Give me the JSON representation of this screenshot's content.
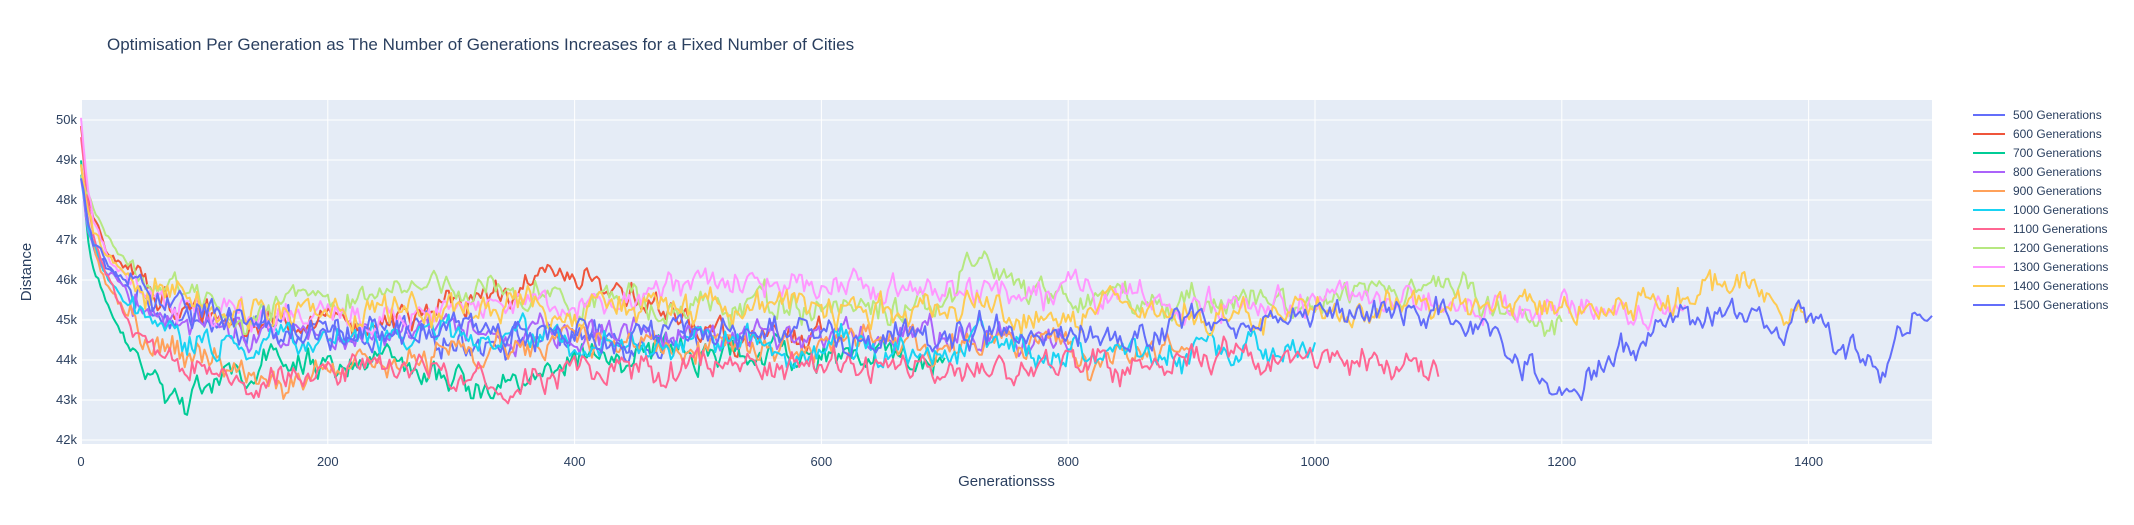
{
  "chart_data": {
    "type": "line",
    "title": "Optimisation Per Generation as The Number of Generations Increases for a Fixed Number of Cities",
    "xlabel": "Generationsss",
    "ylabel": "Distance",
    "xlim": [
      0,
      1500
    ],
    "ylim": [
      41900,
      50500
    ],
    "x_ticks": [
      0,
      200,
      400,
      600,
      800,
      1000,
      1200,
      1400
    ],
    "x_tick_labels": [
      "0",
      "200",
      "400",
      "600",
      "800",
      "1000",
      "1200",
      "1400"
    ],
    "y_ticks": [
      42000,
      43000,
      44000,
      45000,
      46000,
      47000,
      48000,
      49000,
      50000
    ],
    "y_tick_labels": [
      "42k",
      "43k",
      "44k",
      "45k",
      "46k",
      "47k",
      "48k",
      "49k",
      "50k"
    ],
    "grid": true,
    "legend_position": "right",
    "background": "#e5ecf6",
    "series": [
      {
        "name": "500 Generations",
        "color": "#636efa",
        "x": [
          0,
          5,
          10,
          20,
          30,
          40,
          60,
          80,
          100,
          130,
          160,
          200,
          240,
          280,
          320,
          360,
          400,
          440,
          480,
          500
        ],
        "y": [
          48600,
          47500,
          46800,
          46300,
          46000,
          45800,
          45400,
          45100,
          44900,
          44800,
          44700,
          44600,
          44700,
          44600,
          44500,
          44600,
          44600,
          44500,
          44600,
          44700
        ]
      },
      {
        "name": "600 Generations",
        "color": "#ef553b",
        "x": [
          0,
          5,
          10,
          20,
          30,
          40,
          60,
          80,
          100,
          150,
          200,
          250,
          300,
          350,
          380,
          400,
          420,
          450,
          480,
          520,
          560,
          600
        ],
        "y": [
          49800,
          48200,
          47400,
          46800,
          46500,
          46200,
          45700,
          45300,
          45100,
          45000,
          44900,
          45000,
          45200,
          45700,
          46100,
          46300,
          46000,
          45500,
          45000,
          44600,
          44500,
          44600
        ]
      },
      {
        "name": "700 Generations",
        "color": "#00cc96",
        "x": [
          0,
          5,
          10,
          20,
          30,
          40,
          50,
          60,
          80,
          100,
          120,
          150,
          200,
          250,
          300,
          320,
          350,
          400,
          450,
          500,
          550,
          600,
          650,
          700
        ],
        "y": [
          48900,
          47300,
          46300,
          45400,
          44800,
          44300,
          43900,
          43400,
          43200,
          43300,
          43500,
          43800,
          44000,
          43800,
          43500,
          43200,
          43600,
          43900,
          44100,
          44200,
          44000,
          44100,
          44100,
          44000
        ]
      },
      {
        "name": "800 Generations",
        "color": "#ab63fa",
        "x": [
          0,
          5,
          10,
          20,
          30,
          40,
          60,
          80,
          100,
          150,
          200,
          300,
          400,
          500,
          600,
          700,
          800
        ],
        "y": [
          48500,
          47400,
          46800,
          46300,
          46000,
          45700,
          45300,
          45100,
          44900,
          44800,
          44800,
          44700,
          44700,
          44700,
          44600,
          44700,
          44600
        ]
      },
      {
        "name": "900 Generations",
        "color": "#ffa15a",
        "x": [
          0,
          5,
          10,
          20,
          30,
          40,
          60,
          80,
          100,
          120,
          150,
          180,
          200,
          250,
          300,
          350,
          400,
          500,
          600,
          700,
          800,
          820,
          850,
          900
        ],
        "y": [
          48800,
          47500,
          46800,
          46000,
          45400,
          44900,
          44400,
          44100,
          43900,
          43800,
          43600,
          43500,
          43600,
          43900,
          44100,
          44300,
          44400,
          44500,
          44400,
          44300,
          44300,
          43500,
          44200,
          44300
        ]
      },
      {
        "name": "1000 Generations",
        "color": "#19d3f3",
        "x": [
          0,
          5,
          10,
          20,
          30,
          40,
          60,
          80,
          100,
          150,
          200,
          300,
          400,
          500,
          600,
          700,
          800,
          900,
          1000
        ],
        "y": [
          48700,
          47500,
          46800,
          46100,
          45600,
          45200,
          44800,
          44600,
          44500,
          44500,
          44600,
          44600,
          44500,
          44400,
          44300,
          44300,
          44300,
          44200,
          44200
        ]
      },
      {
        "name": "1100 Generations",
        "color": "#ff6692",
        "x": [
          0,
          5,
          10,
          20,
          30,
          40,
          60,
          80,
          100,
          150,
          200,
          250,
          300,
          350,
          400,
          450,
          500,
          550,
          600,
          650,
          700,
          750,
          800,
          850,
          900,
          950,
          1000,
          1050,
          1100
        ],
        "y": [
          49600,
          48100,
          47200,
          46100,
          45300,
          44800,
          44200,
          43900,
          43700,
          43600,
          43700,
          43900,
          43600,
          43500,
          43700,
          43800,
          43700,
          43600,
          43800,
          43800,
          43700,
          43700,
          43900,
          43900,
          44000,
          44000,
          44000,
          43900,
          43900
        ]
      },
      {
        "name": "1200 Generations",
        "color": "#b6e880",
        "x": [
          0,
          5,
          10,
          20,
          30,
          40,
          60,
          80,
          100,
          150,
          200,
          250,
          300,
          350,
          400,
          500,
          600,
          700,
          720,
          800,
          900,
          1000,
          1050,
          1100,
          1150,
          1200
        ],
        "y": [
          48700,
          48300,
          47800,
          47200,
          46800,
          46400,
          45900,
          45600,
          45400,
          45300,
          45500,
          45600,
          45800,
          45700,
          45500,
          45300,
          45300,
          45500,
          46100,
          45600,
          45400,
          45500,
          45700,
          45800,
          45200,
          45000
        ]
      },
      {
        "name": "1300 Generations",
        "color": "#ff97ff",
        "x": [
          0,
          5,
          10,
          20,
          30,
          40,
          60,
          80,
          100,
          150,
          200,
          300,
          400,
          450,
          500,
          550,
          600,
          700,
          800,
          900,
          1000,
          1100,
          1200,
          1250,
          1300
        ],
        "y": [
          50100,
          48400,
          47600,
          46800,
          46300,
          46000,
          45600,
          45400,
          45300,
          45200,
          45200,
          45300,
          45400,
          45700,
          46000,
          45900,
          45800,
          45700,
          45600,
          45500,
          45500,
          45400,
          45300,
          45200,
          45100
        ]
      },
      {
        "name": "1400 Generations",
        "color": "#fecb52",
        "x": [
          0,
          5,
          10,
          20,
          30,
          40,
          60,
          80,
          100,
          150,
          200,
          300,
          400,
          500,
          600,
          700,
          800,
          900,
          1000,
          1100,
          1200,
          1300,
          1320,
          1350,
          1400
        ],
        "y": [
          48900,
          47800,
          47200,
          46600,
          46300,
          46000,
          45700,
          45500,
          45300,
          45200,
          45200,
          45300,
          45300,
          45200,
          45300,
          45300,
          45200,
          45200,
          45100,
          45300,
          45300,
          45500,
          46000,
          45700,
          45300
        ]
      },
      {
        "name": "1500 Generations",
        "color": "#636efa",
        "x": [
          0,
          5,
          10,
          20,
          30,
          40,
          60,
          80,
          100,
          150,
          200,
          300,
          400,
          500,
          600,
          700,
          800,
          900,
          1000,
          1100,
          1150,
          1180,
          1200,
          1220,
          1250,
          1300,
          1350,
          1400,
          1440,
          1460,
          1480,
          1500
        ],
        "y": [
          48600,
          47600,
          47000,
          46400,
          46100,
          45800,
          45500,
          45300,
          45100,
          44900,
          44800,
          44700,
          44700,
          44700,
          44600,
          44600,
          44700,
          44900,
          45100,
          45300,
          44400,
          43700,
          43100,
          43500,
          44300,
          45000,
          45200,
          45000,
          44200,
          43700,
          45200,
          45500
        ]
      }
    ]
  }
}
